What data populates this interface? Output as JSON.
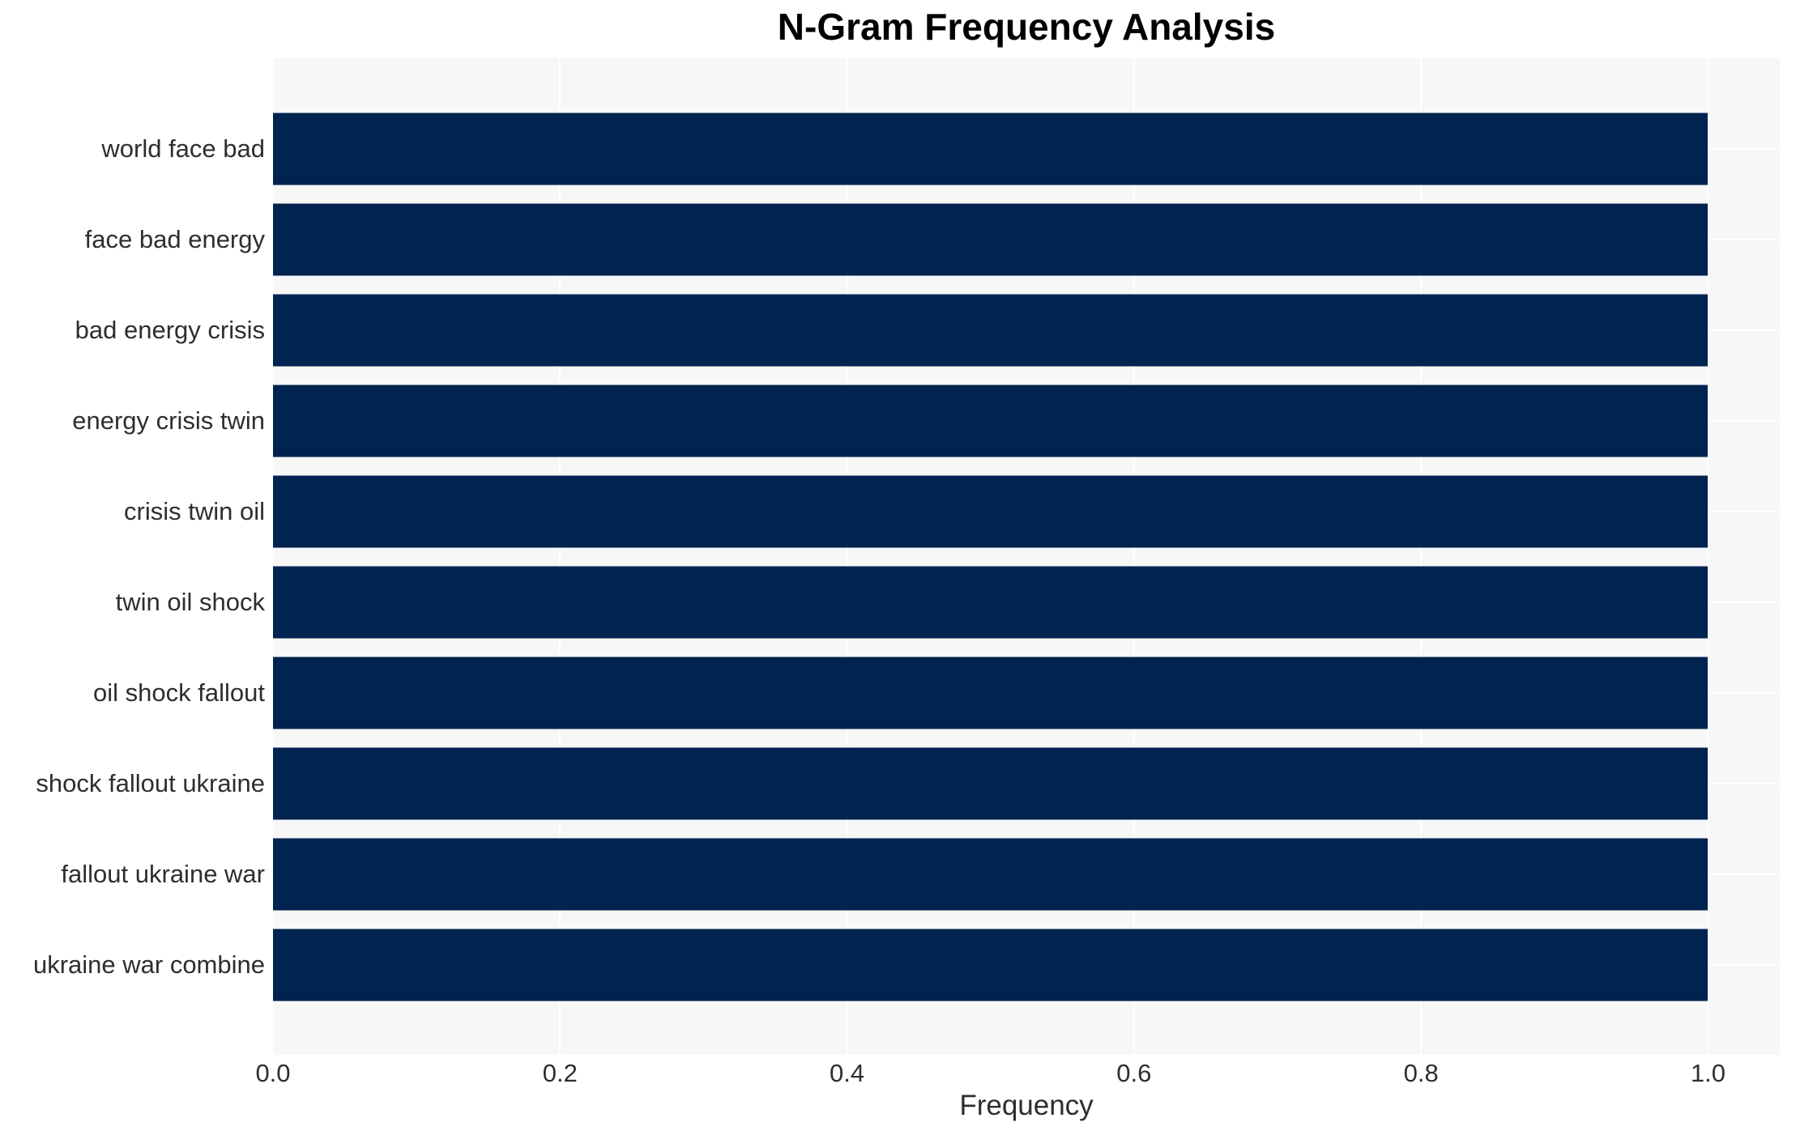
{
  "chart_data": {
    "type": "bar",
    "orientation": "horizontal",
    "title": "N-Gram Frequency Analysis",
    "xlabel": "Frequency",
    "ylabel": "",
    "categories": [
      "world face bad",
      "face bad energy",
      "bad energy crisis",
      "energy crisis twin",
      "crisis twin oil",
      "twin oil shock",
      "oil shock fallout",
      "shock fallout ukraine",
      "fallout ukraine war",
      "ukraine war combine"
    ],
    "values": [
      1.0,
      1.0,
      1.0,
      1.0,
      1.0,
      1.0,
      1.0,
      1.0,
      1.0,
      1.0
    ],
    "xticks": [
      "0.0",
      "0.2",
      "0.4",
      "0.6",
      "0.8",
      "1.0"
    ],
    "xtick_values": [
      0,
      0.2,
      0.4,
      0.6,
      0.8,
      1.0
    ],
    "xlim": [
      0,
      1.05
    ],
    "grid": true,
    "legend": false,
    "colors": {
      "bar": "#012350",
      "plot_bg": "#f7f7f7",
      "grid": "#ffffff",
      "text": "#2e2e2e",
      "title": "#000000"
    }
  }
}
